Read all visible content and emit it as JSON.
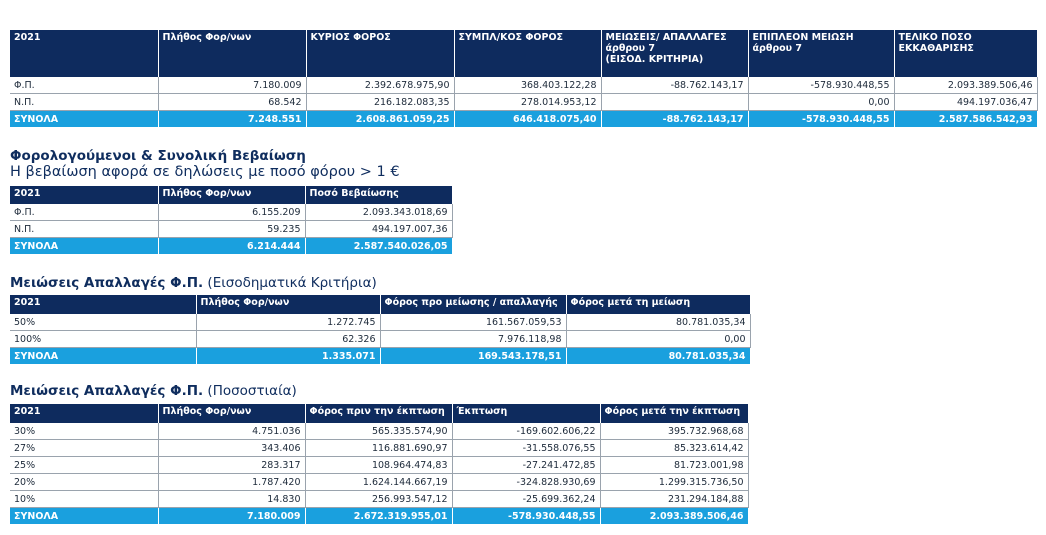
{
  "colors": {
    "header": "#0e2b5e",
    "total": "#1aa0de",
    "title": "#0f2d5e"
  },
  "t1": {
    "headers": [
      "2021",
      "Πλήθος Φορ/νων",
      "ΚΥΡΙΟΣ ΦΟΡΟΣ",
      "ΣΥΜΠΛ/ΚΟΣ ΦΟΡΟΣ",
      "ΜΕΙΩΣΕΙΣ/ ΑΠΑΛΛΑΓΕΣ\nάρθρου 7\n(ΕΙΣΟΔ. ΚΡΙΤΗΡΙΑ)",
      "ΕΠΙΠΛΕΟΝ ΜΕΙΩΣΗ\nάρθρου 7",
      "ΤΕΛΙΚΟ ΠΟΣΟ\nΕΚΚΑΘΑΡΙΣΗΣ"
    ],
    "rows": [
      [
        "Φ.Π.",
        "7.180.009",
        "2.392.678.975,90",
        "368.403.122,28",
        "-88.762.143,17",
        "-578.930.448,55",
        "2.093.389.506,46"
      ],
      [
        "Ν.Π.",
        "68.542",
        "216.182.083,35",
        "278.014.953,12",
        "",
        "0,00",
        "494.197.036,47"
      ]
    ],
    "total": [
      "ΣΥΝΟΛΑ",
      "7.248.551",
      "2.608.861.059,25",
      "646.418.075,40",
      "-88.762.143,17",
      "-578.930.448,55",
      "2.587.586.542,93"
    ]
  },
  "t2": {
    "title": "Φορολογούμενοι & Συνολική Βεβαίωση",
    "subtitle": "Η βεβαίωση αφορά σε δηλώσεις με ποσό φόρου > 1 €",
    "headers": [
      "2021",
      "Πλήθος Φορ/νων",
      "Ποσό Βεβαίωσης"
    ],
    "rows": [
      [
        "Φ.Π.",
        "6.155.209",
        "2.093.343.018,69"
      ],
      [
        "Ν.Π.",
        "59.235",
        "494.197.007,36"
      ]
    ],
    "total": [
      "ΣΥΝΟΛΑ",
      "6.214.444",
      "2.587.540.026,05"
    ]
  },
  "t3": {
    "title_bold": "Μειώσεις Απαλλαγές Φ.Π.",
    "title_rest": " (Εισοδηματικά Κριτήρια)",
    "headers": [
      "2021",
      "Πλήθος Φορ/νων",
      "Φόρος προ μείωσης / απαλλαγής",
      "Φόρος μετά τη μείωση"
    ],
    "rows": [
      [
        "50%",
        "1.272.745",
        "161.567.059,53",
        "80.781.035,34"
      ],
      [
        "100%",
        "62.326",
        "7.976.118,98",
        "0,00"
      ]
    ],
    "total": [
      "ΣΥΝΟΛΑ",
      "1.335.071",
      "169.543.178,51",
      "80.781.035,34"
    ]
  },
  "t4": {
    "title_bold": "Μειώσεις Απαλλαγές Φ.Π.",
    "title_rest": " (Ποσοστιαία)",
    "headers": [
      "2021",
      "Πλήθος Φορ/νων",
      "Φόρος πριν την έκπτωση",
      "Έκπτωση",
      "Φόρος μετά την έκπτωση"
    ],
    "rows": [
      [
        "30%",
        "4.751.036",
        "565.335.574,90",
        "-169.602.606,22",
        "395.732.968,68"
      ],
      [
        "27%",
        "343.406",
        "116.881.690,97",
        "-31.558.076,55",
        "85.323.614,42"
      ],
      [
        "25%",
        "283.317",
        "108.964.474,83",
        "-27.241.472,85",
        "81.723.001,98"
      ],
      [
        "20%",
        "1.787.420",
        "1.624.144.667,19",
        "-324.828.930,69",
        "1.299.315.736,50"
      ],
      [
        "10%",
        "14.830",
        "256.993.547,12",
        "-25.699.362,24",
        "231.294.184,88"
      ]
    ],
    "total": [
      "ΣΥΝΟΛΑ",
      "7.180.009",
      "2.672.319.955,01",
      "-578.930.448,55",
      "2.093.389.506,46"
    ]
  }
}
